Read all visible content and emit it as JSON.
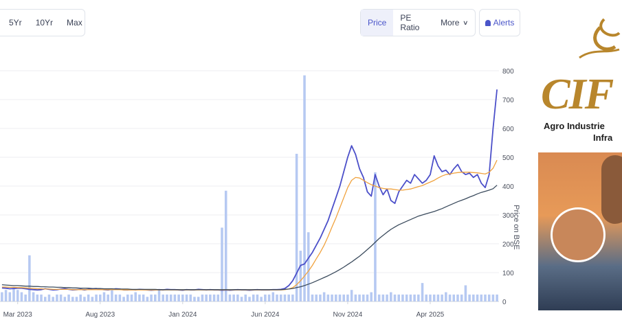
{
  "toolbar": {
    "ranges": [
      "5Yr",
      "10Yr",
      "Max"
    ],
    "views": [
      {
        "label": "Price",
        "active": true
      },
      {
        "label": "PE Ratio",
        "active": false
      },
      {
        "label": "More",
        "active": false
      }
    ],
    "alerts_label": "Alerts"
  },
  "promo": {
    "logo_text": "CIF",
    "line1": "Agro Industrie",
    "line2": "Infra"
  },
  "chart_data": {
    "type": "line",
    "ylabel": "Price on BSE",
    "y_ticks": [
      0,
      100,
      200,
      300,
      400,
      500,
      600,
      700,
      800
    ],
    "ylim": [
      0,
      800
    ],
    "x_tick_labels": [
      "Mar 2023",
      "Aug 2023",
      "Jan 2024",
      "Jun 2024",
      "Nov 2024",
      "Apr 2025"
    ],
    "x_tick_index": [
      4,
      25,
      46,
      67,
      88,
      109
    ],
    "x_count": 127,
    "grid": true,
    "series": [
      {
        "values": [
          47,
          46,
          44,
          45,
          46,
          46,
          44,
          42,
          41,
          40,
          41,
          44,
          42,
          40,
          41,
          43,
          44,
          42,
          40,
          41,
          42,
          40,
          42,
          44,
          45,
          42,
          41,
          40,
          42,
          44,
          43,
          40,
          40,
          41,
          40,
          42,
          41,
          40,
          39,
          40,
          41,
          40,
          42,
          41,
          41,
          40,
          39,
          41,
          40,
          40,
          42,
          41,
          40,
          41,
          40,
          40,
          39,
          40,
          39,
          40,
          41,
          40,
          40,
          39,
          40,
          41,
          40,
          40,
          40,
          41,
          41,
          42,
          45,
          55,
          72,
          98,
          125,
          130,
          150,
          170,
          195,
          220,
          250,
          280,
          320,
          360,
          400,
          450,
          500,
          540,
          510,
          460,
          430,
          380,
          365,
          440,
          400,
          370,
          390,
          350,
          340,
          380,
          400,
          420,
          410,
          440,
          425,
          410,
          420,
          440,
          505,
          470,
          450,
          455,
          440,
          460,
          475,
          450,
          440,
          445,
          430,
          440,
          410,
          395,
          440,
          600,
          735
        ]
      },
      {
        "values": [
          50,
          50,
          49,
          49,
          48,
          48,
          47,
          46,
          45,
          44,
          44,
          43,
          43,
          42,
          42,
          42,
          42,
          42,
          41,
          41,
          41,
          41,
          41,
          41,
          41,
          41,
          41,
          41,
          41,
          41,
          41,
          40,
          40,
          40,
          40,
          40,
          40,
          40,
          40,
          40,
          40,
          40,
          40,
          40,
          40,
          40,
          40,
          40,
          40,
          40,
          40,
          40,
          40,
          40,
          40,
          40,
          40,
          40,
          40,
          40,
          40,
          40,
          40,
          40,
          40,
          40,
          40,
          40,
          40,
          40,
          40,
          40,
          41,
          43,
          48,
          58,
          72,
          88,
          105,
          125,
          148,
          170,
          195,
          225,
          258,
          290,
          325,
          360,
          395,
          420,
          430,
          428,
          420,
          412,
          405,
          400,
          395,
          392,
          390,
          390,
          388,
          386,
          386,
          388,
          390,
          394,
          398,
          402,
          408,
          414,
          420,
          428,
          435,
          440,
          442,
          445,
          447,
          448,
          448,
          448,
          447,
          446,
          444,
          442,
          448,
          462,
          490
        ]
      },
      {
        "values": [
          58,
          57,
          56,
          55,
          55,
          54,
          53,
          53,
          52,
          52,
          51,
          51,
          50,
          50,
          49,
          49,
          48,
          48,
          47,
          47,
          46,
          46,
          46,
          45,
          45,
          45,
          44,
          44,
          44,
          43,
          43,
          43,
          43,
          42,
          42,
          42,
          42,
          42,
          42,
          42,
          41,
          41,
          41,
          41,
          41,
          41,
          41,
          41,
          41,
          41,
          41,
          41,
          41,
          41,
          41,
          41,
          41,
          41,
          41,
          41,
          41,
          41,
          41,
          41,
          41,
          41,
          41,
          41,
          41,
          41,
          41,
          41,
          42,
          43,
          45,
          48,
          51,
          55,
          60,
          65,
          71,
          77,
          83,
          89,
          96,
          103,
          111,
          119,
          128,
          137,
          147,
          157,
          168,
          180,
          192,
          205,
          218,
          229,
          240,
          250,
          258,
          266,
          272,
          278,
          284,
          290,
          296,
          300,
          304,
          308,
          312,
          317,
          322,
          328,
          334,
          340,
          346,
          351,
          356,
          362,
          367,
          373,
          378,
          382,
          386,
          391,
          403
        ]
      }
    ],
    "volume": [
      4,
      5,
      4,
      6,
      5,
      4,
      3,
      20,
      4,
      3,
      3,
      2,
      3,
      2,
      3,
      3,
      2,
      3,
      2,
      2,
      3,
      2,
      3,
      2,
      3,
      3,
      4,
      3,
      5,
      3,
      3,
      2,
      3,
      3,
      4,
      3,
      3,
      2,
      3,
      3,
      5,
      3,
      3,
      3,
      3,
      3,
      3,
      3,
      3,
      2,
      2,
      3,
      3,
      3,
      3,
      3,
      32,
      48,
      3,
      3,
      3,
      2,
      3,
      2,
      3,
      3,
      2,
      3,
      3,
      4,
      3,
      3,
      3,
      3,
      3,
      64,
      22,
      98,
      30,
      3,
      3,
      3,
      4,
      3,
      3,
      3,
      3,
      3,
      3,
      5,
      3,
      3,
      3,
      3,
      4,
      56,
      3,
      3,
      3,
      4,
      3,
      3,
      3,
      3,
      3,
      3,
      3,
      8,
      3,
      3,
      3,
      3,
      3,
      4,
      3,
      3,
      3,
      3,
      7,
      3,
      3,
      3,
      3,
      3,
      3,
      3,
      3
    ]
  }
}
